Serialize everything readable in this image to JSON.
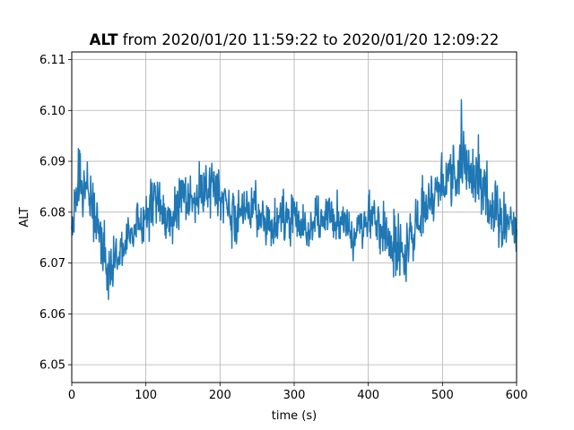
{
  "chart_data": {
    "type": "line",
    "title_bold": "ALT",
    "title_rest": " from 2020/01/20 11:59:22 to 2020/01/20 12:09:22",
    "xlabel": "time (s)",
    "ylabel": "ALT",
    "xlim": [
      0,
      600
    ],
    "ylim": [
      6.0465,
      6.1115
    ],
    "xticks": [
      0,
      100,
      200,
      300,
      400,
      500,
      600
    ],
    "xtick_labels": [
      "0",
      "100",
      "200",
      "300",
      "400",
      "500",
      "600"
    ],
    "yticks": [
      6.05,
      6.06,
      6.07,
      6.08,
      6.09,
      6.1,
      6.11
    ],
    "ytick_labels": [
      "6.05",
      "6.06",
      "6.07",
      "6.08",
      "6.09",
      "6.10",
      "6.11"
    ],
    "grid": true,
    "line_color": "#1f77b4",
    "series": [
      {
        "name": "",
        "x": [
          0,
          10,
          20,
          30,
          40,
          50,
          60,
          70,
          80,
          90,
          100,
          110,
          120,
          130,
          140,
          150,
          160,
          170,
          180,
          190,
          200,
          210,
          220,
          230,
          240,
          250,
          260,
          270,
          280,
          290,
          300,
          310,
          320,
          330,
          340,
          350,
          360,
          370,
          380,
          390,
          400,
          410,
          420,
          430,
          440,
          450,
          460,
          470,
          480,
          490,
          500,
          510,
          520,
          530,
          540,
          550,
          560,
          570,
          580,
          590,
          600
        ],
        "y": [
          6.078,
          6.088,
          6.085,
          6.08,
          6.074,
          6.068,
          6.071,
          6.074,
          6.076,
          6.078,
          6.079,
          6.082,
          6.08,
          6.078,
          6.08,
          6.082,
          6.083,
          6.082,
          6.084,
          6.085,
          6.083,
          6.08,
          6.079,
          6.081,
          6.082,
          6.08,
          6.078,
          6.077,
          6.078,
          6.079,
          6.08,
          6.078,
          6.076,
          6.077,
          6.079,
          6.08,
          6.078,
          6.077,
          6.076,
          6.077,
          6.078,
          6.079,
          6.075,
          6.074,
          6.073,
          6.072,
          6.076,
          6.079,
          6.081,
          6.083,
          6.085,
          6.088,
          6.09,
          6.091,
          6.089,
          6.087,
          6.082,
          6.08,
          6.078,
          6.077,
          6.076
        ],
        "amplitude": [
          0.008,
          0.012,
          0.011,
          0.01,
          0.013,
          0.012,
          0.009,
          0.008,
          0.008,
          0.009,
          0.009,
          0.01,
          0.011,
          0.01,
          0.01,
          0.011,
          0.01,
          0.01,
          0.011,
          0.011,
          0.01,
          0.01,
          0.009,
          0.009,
          0.009,
          0.009,
          0.009,
          0.009,
          0.009,
          0.009,
          0.01,
          0.01,
          0.009,
          0.009,
          0.009,
          0.009,
          0.009,
          0.009,
          0.009,
          0.009,
          0.009,
          0.009,
          0.01,
          0.011,
          0.013,
          0.012,
          0.011,
          0.01,
          0.009,
          0.009,
          0.01,
          0.011,
          0.012,
          0.013,
          0.012,
          0.011,
          0.011,
          0.011,
          0.011,
          0.011,
          0.01
        ]
      }
    ]
  }
}
